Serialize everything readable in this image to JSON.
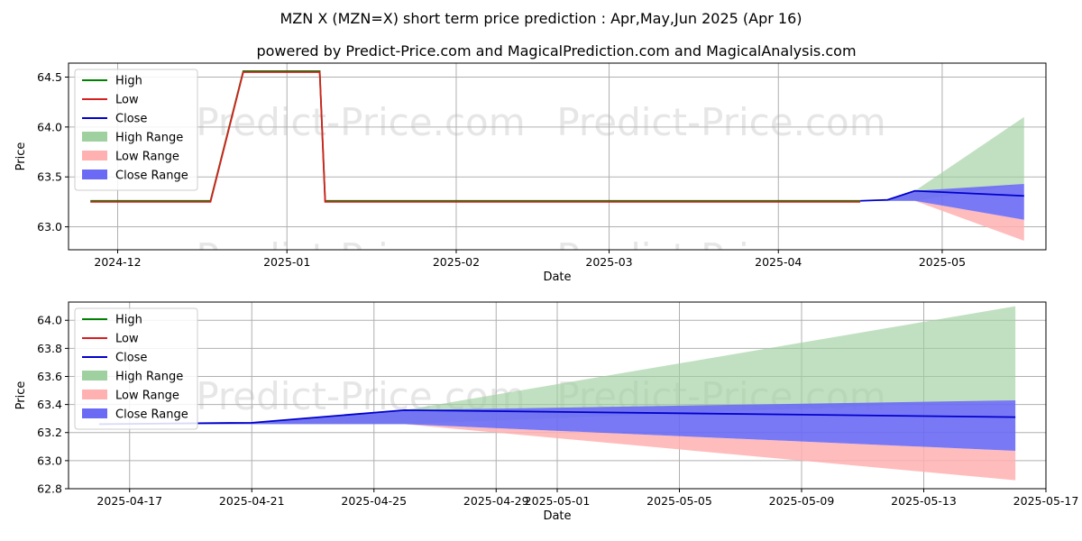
{
  "title": "MZN X (MZN=X) short term price prediction : Apr,May,Jun 2025 (Apr 16)",
  "subtitle": "powered by Predict-Price.com and MagicalPrediction.com and MagicalAnalysis.com",
  "watermark": "Predict-Price.com",
  "colors": {
    "high": "#008000",
    "low": "#d62020",
    "close": "#0000cc",
    "high_range": "#9fd09f",
    "low_range": "#ffb0b0",
    "close_range": "#6a6af5"
  },
  "chart_data": [
    {
      "type": "line",
      "panel": "full-history",
      "xlabel": "Date",
      "ylabel": "Price",
      "ylim": [
        62.77,
        64.64
      ],
      "xlim": [
        "2024-11-22",
        "2025-05-20"
      ],
      "x_ticks": [
        "2024-12",
        "2025-01",
        "2025-02",
        "2025-03",
        "2025-04",
        "2025-05"
      ],
      "x_tick_dates": [
        "2024-12-01",
        "2025-01-01",
        "2025-02-01",
        "2025-03-01",
        "2025-04-01",
        "2025-05-01"
      ],
      "y_ticks": [
        "63.0",
        "63.5",
        "64.0",
        "64.5"
      ],
      "grid": true,
      "legend": [
        "High",
        "Low",
        "Close",
        "High Range",
        "Low Range",
        "Close Range"
      ],
      "legend_position": "top-left",
      "series": [
        {
          "name": "High",
          "points": [
            [
              "2024-11-26",
              63.26
            ],
            [
              "2024-12-18",
              63.26
            ],
            [
              "2024-12-24",
              64.56
            ],
            [
              "2025-01-07",
              64.56
            ],
            [
              "2025-01-08",
              63.26
            ],
            [
              "2025-04-16",
              63.26
            ]
          ]
        },
        {
          "name": "Low",
          "points": [
            [
              "2024-11-26",
              63.25
            ],
            [
              "2024-12-18",
              63.25
            ],
            [
              "2024-12-24",
              64.55
            ],
            [
              "2025-01-07",
              64.55
            ],
            [
              "2025-01-08",
              63.25
            ],
            [
              "2025-04-16",
              63.25
            ]
          ]
        },
        {
          "name": "Close",
          "points": [
            [
              "2025-04-16",
              63.26
            ],
            [
              "2025-04-21",
              63.27
            ],
            [
              "2025-04-26",
              63.36
            ],
            [
              "2025-05-16",
              63.31
            ]
          ]
        }
      ],
      "ranges": [
        {
          "name": "High Range",
          "points": [
            [
              "2025-04-16",
              63.26,
              63.26
            ],
            [
              "2025-04-21",
              63.26,
              63.27
            ],
            [
              "2025-04-26",
              63.26,
              63.36
            ],
            [
              "2025-05-16",
              63.43,
              64.1
            ]
          ]
        },
        {
          "name": "Low Range",
          "points": [
            [
              "2025-04-16",
              63.26,
              63.26
            ],
            [
              "2025-04-21",
              63.26,
              63.26
            ],
            [
              "2025-04-26",
              63.26,
              63.26
            ],
            [
              "2025-05-16",
              62.86,
              63.07
            ]
          ]
        },
        {
          "name": "Close Range",
          "points": [
            [
              "2025-04-16",
              63.26,
              63.26
            ],
            [
              "2025-04-21",
              63.26,
              63.27
            ],
            [
              "2025-04-26",
              63.26,
              63.36
            ],
            [
              "2025-05-16",
              63.07,
              63.43
            ]
          ]
        }
      ]
    },
    {
      "type": "line",
      "panel": "forecast-zoom",
      "xlabel": "Date",
      "ylabel": "Price",
      "ylim": [
        62.8,
        64.13
      ],
      "xlim": [
        "2025-04-15",
        "2025-05-17"
      ],
      "x_ticks": [
        "2025-04-17",
        "2025-04-21",
        "2025-04-25",
        "2025-04-29",
        "2025-05-01",
        "2025-05-05",
        "2025-05-09",
        "2025-05-13",
        "2025-05-17"
      ],
      "y_ticks": [
        "62.8",
        "63.0",
        "63.2",
        "63.4",
        "63.6",
        "63.8",
        "64.0"
      ],
      "grid": true,
      "legend": [
        "High",
        "Low",
        "Close",
        "High Range",
        "Low Range",
        "Close Range"
      ],
      "legend_position": "top-left",
      "series": [
        {
          "name": "Close",
          "points": [
            [
              "2025-04-16",
              63.26
            ],
            [
              "2025-04-21",
              63.27
            ],
            [
              "2025-04-26",
              63.36
            ],
            [
              "2025-05-16",
              63.31
            ]
          ]
        }
      ],
      "ranges": [
        {
          "name": "High Range",
          "points": [
            [
              "2025-04-16",
              63.26,
              63.26
            ],
            [
              "2025-04-21",
              63.26,
              63.27
            ],
            [
              "2025-04-26",
              63.26,
              63.36
            ],
            [
              "2025-05-16",
              63.43,
              64.1
            ]
          ]
        },
        {
          "name": "Low Range",
          "points": [
            [
              "2025-04-16",
              63.26,
              63.26
            ],
            [
              "2025-04-21",
              63.26,
              63.26
            ],
            [
              "2025-04-26",
              63.26,
              63.26
            ],
            [
              "2025-05-16",
              62.86,
              63.07
            ]
          ]
        },
        {
          "name": "Close Range",
          "points": [
            [
              "2025-04-16",
              63.26,
              63.26
            ],
            [
              "2025-04-21",
              63.26,
              63.27
            ],
            [
              "2025-04-26",
              63.26,
              63.36
            ],
            [
              "2025-05-16",
              63.07,
              63.43
            ]
          ]
        }
      ]
    }
  ]
}
